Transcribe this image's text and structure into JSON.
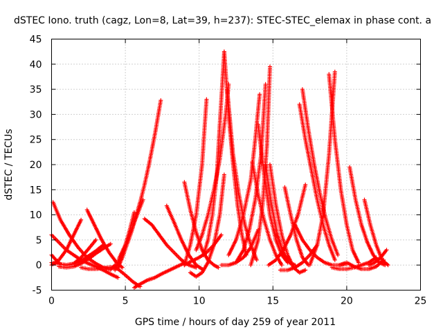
{
  "chart_data": {
    "type": "scatter",
    "title": "dSTEC Iono. truth (cagz, Lon=8, Lat=39, h=237): STEC-STEC_elemax in phase cont. a",
    "xlabel": "GPS time / hours of day 259 of year 2011",
    "ylabel": "dSTEC  / TECUs",
    "xlim": [
      0,
      25
    ],
    "ylim": [
      -5,
      45
    ],
    "xticks": [
      0,
      5,
      10,
      15,
      20,
      25
    ],
    "yticks": [
      -5,
      0,
      5,
      10,
      15,
      20,
      25,
      30,
      35,
      40,
      45
    ],
    "grid": true,
    "marker": "+",
    "color": "#ff0000",
    "arcs": [
      {
        "x": [
          0.0,
          0.3,
          0.6,
          1.0,
          1.5,
          2.0,
          2.5,
          3.0
        ],
        "y": [
          2.0,
          1.0,
          0.2,
          0.0,
          0.3,
          1.5,
          3.2,
          5.0
        ]
      },
      {
        "x": [
          0.1,
          0.6,
          1.2,
          1.8,
          2.4,
          3.0,
          3.5,
          4.0,
          4.3
        ],
        "y": [
          12.5,
          9.0,
          6.0,
          3.5,
          1.5,
          0.3,
          -0.5,
          -0.9,
          0.0
        ]
      },
      {
        "x": [
          0.0,
          0.5,
          1.0,
          1.5,
          2.0,
          2.5,
          3.0,
          3.5,
          4.0,
          4.5
        ],
        "y": [
          6.0,
          4.5,
          3.0,
          2.0,
          1.0,
          0.3,
          -0.3,
          -1.0,
          -1.8,
          -2.5
        ]
      },
      {
        "x": [
          0.0,
          0.5,
          1.0,
          1.5,
          2.0,
          2.5,
          3.0,
          3.5
        ],
        "y": [
          0.5,
          0.2,
          0.0,
          0.2,
          0.8,
          1.8,
          2.8,
          4.0
        ]
      },
      {
        "x": [
          0.0,
          0.5,
          1.0,
          1.5,
          2.0
        ],
        "y": [
          0.0,
          1.0,
          3.0,
          6.0,
          9.0
        ]
      },
      {
        "x": [
          0.5,
          1.0,
          1.5,
          2.0,
          2.5,
          3.0,
          3.5,
          4.0
        ],
        "y": [
          -0.3,
          -0.5,
          -0.3,
          0.3,
          1.2,
          2.3,
          3.3,
          4.2
        ]
      },
      {
        "x": [
          2.4,
          2.9,
          3.4,
          3.9,
          4.4,
          4.8
        ],
        "y": [
          11.0,
          8.0,
          5.0,
          2.5,
          0.5,
          -0.5
        ]
      },
      {
        "x": [
          2.0,
          2.5,
          3.0,
          3.5,
          4.0,
          4.5,
          5.0,
          5.5,
          6.0
        ],
        "y": [
          -0.5,
          -0.8,
          -0.8,
          -0.6,
          -0.4,
          -0.8,
          -2.0,
          -3.3,
          -4.3
        ]
      },
      {
        "x": [
          4.5,
          4.8,
          5.1,
          5.4,
          5.7,
          6.0,
          6.3,
          6.6,
          7.0,
          7.4
        ],
        "y": [
          -0.5,
          1.5,
          4.0,
          6.5,
          9.5,
          12.5,
          16.0,
          20.0,
          26.0,
          32.8
        ]
      },
      {
        "x": [
          4.5,
          4.8,
          5.0,
          5.3,
          5.6
        ],
        "y": [
          0.0,
          2.0,
          4.0,
          7.0,
          10.5
        ]
      },
      {
        "x": [
          4.3,
          4.6,
          5.0,
          5.4,
          5.8,
          6.2
        ],
        "y": [
          -1.0,
          1.5,
          4.0,
          7.0,
          10.0,
          13.0
        ]
      },
      {
        "x": [
          5.6,
          6.0,
          6.5,
          7.0,
          7.5,
          8.0,
          8.5,
          9.0
        ],
        "y": [
          -4.5,
          -3.8,
          -3.0,
          -2.5,
          -1.7,
          -1.0,
          -0.3,
          0.4
        ]
      },
      {
        "x": [
          6.3,
          6.8,
          7.3,
          7.8,
          8.3,
          8.8,
          9.3,
          9.8
        ],
        "y": [
          9.2,
          8.0,
          6.0,
          4.0,
          2.5,
          1.0,
          0.0,
          -0.5
        ]
      },
      {
        "x": [
          7.8,
          8.3,
          8.8,
          9.3,
          9.8,
          10.3
        ],
        "y": [
          11.8,
          8.5,
          5.0,
          2.0,
          0.0,
          -1.0
        ]
      },
      {
        "x": [
          9.0,
          9.5,
          10.0,
          10.5,
          11.0,
          11.5
        ],
        "y": [
          0.0,
          0.8,
          1.5,
          2.5,
          4.0,
          6.0
        ]
      },
      {
        "x": [
          9.0,
          9.4,
          9.8,
          10.2,
          10.6,
          11.0,
          11.3
        ],
        "y": [
          16.5,
          11.0,
          6.5,
          3.0,
          1.0,
          0.0,
          -0.5
        ]
      },
      {
        "x": [
          9.0,
          9.4,
          9.8,
          10.2,
          10.5
        ],
        "y": [
          0.0,
          4.0,
          10.0,
          20.0,
          33.0
        ]
      },
      {
        "x": [
          9.4,
          9.8,
          10.2,
          10.6,
          11.0,
          11.4,
          11.7
        ],
        "y": [
          -1.5,
          -2.3,
          -1.5,
          0.5,
          4.0,
          10.0,
          18.0
        ]
      },
      {
        "x": [
          9.8,
          10.2,
          10.6,
          11.0,
          11.4,
          11.8,
          12.0
        ],
        "y": [
          3.0,
          6.0,
          10.0,
          15.0,
          21.0,
          30.0,
          36.0
        ]
      },
      {
        "x": [
          10.3,
          10.6,
          10.9,
          11.2,
          11.4,
          11.7
        ],
        "y": [
          2.0,
          5.0,
          10.0,
          18.0,
          28.0,
          42.5
        ]
      },
      {
        "x": [
          11.7,
          12.0,
          12.3,
          12.6,
          12.9,
          13.2
        ],
        "y": [
          42.5,
          30.0,
          20.0,
          12.0,
          6.0,
          2.0
        ]
      },
      {
        "x": [
          11.9,
          12.3,
          12.7,
          13.1,
          13.5,
          13.9
        ],
        "y": [
          35.0,
          22.0,
          14.0,
          8.0,
          4.0,
          1.0
        ]
      },
      {
        "x": [
          11.5,
          12.0,
          12.5,
          13.0,
          13.5,
          14.0
        ],
        "y": [
          0.0,
          0.0,
          0.5,
          1.5,
          3.5,
          7.0
        ]
      },
      {
        "x": [
          12.0,
          12.5,
          13.0,
          13.5,
          13.8,
          14.1
        ],
        "y": [
          2.0,
          5.0,
          10.0,
          17.0,
          25.0,
          34.0
        ]
      },
      {
        "x": [
          12.5,
          13.0,
          13.4,
          13.8,
          14.2,
          14.5
        ],
        "y": [
          0.5,
          3.0,
          7.0,
          13.0,
          22.0,
          36.0
        ]
      },
      {
        "x": [
          13.6,
          14.0,
          14.4,
          14.8,
          15.2,
          15.6
        ],
        "y": [
          20.5,
          14.0,
          9.0,
          5.0,
          2.0,
          0.0
        ]
      },
      {
        "x": [
          14.0,
          14.4,
          14.8,
          15.2,
          15.6,
          16.0
        ],
        "y": [
          28.0,
          18.0,
          10.0,
          5.0,
          2.0,
          0.5
        ]
      },
      {
        "x": [
          14.5,
          14.9,
          15.3,
          15.7,
          16.1,
          16.5
        ],
        "y": [
          20.0,
          12.0,
          6.0,
          2.5,
          0.5,
          0.0
        ]
      },
      {
        "x": [
          13.5,
          14.0,
          14.3,
          14.6,
          14.8
        ],
        "y": [
          0.0,
          5.0,
          12.0,
          24.0,
          39.5
        ]
      },
      {
        "x": [
          14.8,
          15.2,
          15.6,
          16.0,
          16.4,
          16.8,
          17.2
        ],
        "y": [
          20.0,
          12.0,
          6.0,
          2.0,
          -0.5,
          -1.5,
          -1.0
        ]
      },
      {
        "x": [
          14.7,
          15.2,
          15.7,
          16.2,
          16.7,
          17.2
        ],
        "y": [
          0.0,
          1.0,
          3.0,
          6.0,
          10.0,
          16.0
        ]
      },
      {
        "x": [
          15.5,
          16.0,
          16.5,
          17.0,
          17.5,
          18.0
        ],
        "y": [
          -1.0,
          -1.0,
          -0.5,
          0.5,
          2.0,
          4.0
        ]
      },
      {
        "x": [
          15.8,
          16.2,
          16.6,
          17.0,
          17.4
        ],
        "y": [
          15.5,
          10.0,
          5.0,
          1.5,
          0.0
        ]
      },
      {
        "x": [
          16.5,
          17.0,
          17.5,
          18.0,
          18.5,
          19.0,
          19.5,
          20.0
        ],
        "y": [
          8.0,
          5.0,
          3.0,
          1.5,
          0.5,
          0.0,
          0.0,
          0.2
        ]
      },
      {
        "x": [
          16.8,
          17.2,
          17.6,
          18.0,
          18.4,
          18.8,
          19.2
        ],
        "y": [
          32.0,
          25.0,
          19.0,
          13.0,
          8.0,
          4.0,
          1.0
        ]
      },
      {
        "x": [
          17.0,
          17.4,
          17.8,
          18.2,
          18.6,
          19.0,
          19.4
        ],
        "y": [
          35.0,
          27.0,
          20.0,
          14.0,
          9.0,
          5.0,
          2.0
        ]
      },
      {
        "x": [
          17.5,
          18.0,
          18.4,
          18.8,
          19.2
        ],
        "y": [
          0.0,
          4.0,
          10.0,
          22.0,
          38.5
        ]
      },
      {
        "x": [
          18.8,
          19.2,
          19.6,
          20.0,
          20.4,
          20.8
        ],
        "y": [
          38.0,
          25.0,
          15.0,
          8.0,
          3.0,
          0.5
        ]
      },
      {
        "x": [
          19.0,
          19.5,
          20.0,
          20.5,
          21.0,
          21.5,
          22.0
        ],
        "y": [
          -0.5,
          -0.8,
          -0.8,
          -0.5,
          0.0,
          0.5,
          1.5
        ]
      },
      {
        "x": [
          19.5,
          20.0,
          20.5,
          21.0,
          21.5,
          22.0,
          22.5
        ],
        "y": [
          0.0,
          0.5,
          -0.3,
          -0.8,
          -0.8,
          -0.3,
          1.0
        ]
      },
      {
        "x": [
          20.2,
          20.6,
          21.0,
          21.4,
          21.8,
          22.2,
          22.6
        ],
        "y": [
          19.5,
          13.0,
          8.0,
          4.5,
          2.0,
          0.5,
          0.0
        ]
      },
      {
        "x": [
          21.2,
          21.6,
          22.0,
          22.4,
          22.8
        ],
        "y": [
          13.0,
          8.0,
          4.0,
          1.0,
          0.0
        ]
      },
      {
        "x": [
          21.5,
          21.9,
          22.3,
          22.7
        ],
        "y": [
          0.0,
          0.5,
          1.5,
          3.0
        ]
      }
    ]
  }
}
